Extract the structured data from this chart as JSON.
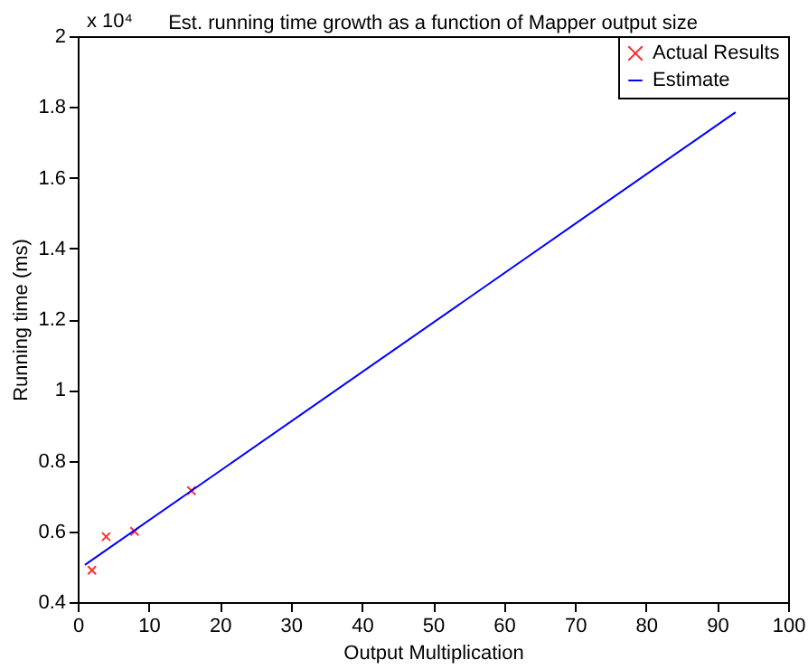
{
  "chart_data": {
    "type": "scatter",
    "title": "Est. running time growth as a function of Mapper output size",
    "xlabel": "Output Multiplication",
    "ylabel": "Running time (ms)",
    "annotations": [
      "x 10⁴"
    ],
    "series": [
      {
        "name": "Actual Results",
        "color": "#ff3030",
        "marker": "cross",
        "x": [
          2,
          4,
          8,
          16
        ],
        "values": [
          0.49,
          0.585,
          0.6,
          0.715
        ]
      },
      {
        "name": "Estimate",
        "type": "line",
        "color": "#0000ff",
        "x": [
          1,
          92.6
        ],
        "values": [
          0.505,
          1.785
        ]
      }
    ],
    "xlim": [
      0,
      100
    ],
    "xticks": [
      0,
      10,
      20,
      30,
      40,
      50,
      60,
      70,
      80,
      90,
      100
    ],
    "ylim": [
      0.4,
      2
    ],
    "yticks": [
      0.4,
      0.6,
      0.8,
      1,
      1.2,
      1.4,
      1.6,
      1.8,
      2
    ],
    "grid": false,
    "legend": "top right"
  }
}
